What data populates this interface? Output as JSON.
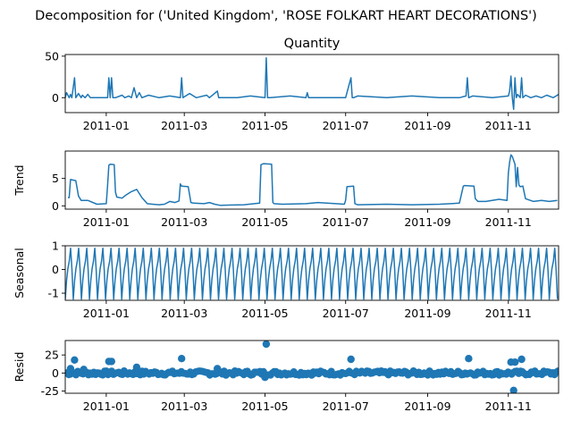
{
  "figure": {
    "suptitle": "Decomposition for ('United Kingdom', 'ROSE FOLKART HEART DECORATIONS')"
  },
  "style": {
    "line_color": "#1f77b4",
    "axis_color": "#000000",
    "background": "#ffffff"
  },
  "chart_data": [
    {
      "type": "line",
      "panel": "observed",
      "title": "Quantity",
      "ylabel": "",
      "ylim": [
        -18,
        52
      ],
      "yticks": [
        0,
        50
      ],
      "x_range": [
        "2010-12-01",
        "2011-12-09"
      ],
      "xticks": [
        "2011-01",
        "2011-03",
        "2011-05",
        "2011-07",
        "2011-09",
        "2011-11"
      ],
      "series": [
        {
          "x": [
            "2010-12-01",
            "2010-12-02",
            "2010-12-04",
            "2010-12-05",
            "2010-12-06",
            "2010-12-08",
            "2010-12-09",
            "2010-12-11",
            "2010-12-13",
            "2010-12-14",
            "2010-12-16",
            "2010-12-18",
            "2010-12-20",
            "2010-12-25",
            "2011-01-02",
            "2011-01-03",
            "2011-01-04",
            "2011-01-05",
            "2011-01-06",
            "2011-01-08",
            "2011-01-13",
            "2011-01-15",
            "2011-01-18",
            "2011-01-20",
            "2011-01-22",
            "2011-01-24",
            "2011-01-26",
            "2011-01-28",
            "2011-02-02",
            "2011-02-10",
            "2011-02-18",
            "2011-02-26",
            "2011-02-27",
            "2011-02-28",
            "2011-03-05",
            "2011-03-10",
            "2011-03-18",
            "2011-03-20",
            "2011-03-26",
            "2011-03-27",
            "2011-03-28",
            "2011-04-10",
            "2011-04-20",
            "2011-05-01",
            "2011-05-02",
            "2011-05-03",
            "2011-05-05",
            "2011-05-20",
            "2011-06-01",
            "2011-06-02",
            "2011-06-03",
            "2011-06-20",
            "2011-07-01",
            "2011-07-05",
            "2011-07-06",
            "2011-07-07",
            "2011-07-10",
            "2011-08-01",
            "2011-08-20",
            "2011-09-10",
            "2011-09-25",
            "2011-09-30",
            "2011-10-01",
            "2011-10-02",
            "2011-10-05",
            "2011-10-20",
            "2011-11-01",
            "2011-11-02",
            "2011-11-03",
            "2011-11-04",
            "2011-11-05",
            "2011-11-06",
            "2011-11-07",
            "2011-11-08",
            "2011-11-10",
            "2011-11-11",
            "2011-11-12",
            "2011-11-14",
            "2011-11-18",
            "2011-11-22",
            "2011-11-26",
            "2011-11-30",
            "2011-12-05",
            "2011-12-09"
          ],
          "y": [
            0,
            6,
            0,
            4,
            0,
            24,
            0,
            5,
            0,
            3,
            0,
            4,
            0,
            0,
            0,
            24,
            0,
            24,
            0,
            0,
            3,
            0,
            2,
            0,
            12,
            0,
            6,
            0,
            3,
            0,
            2,
            0,
            24,
            0,
            5,
            0,
            3,
            0,
            8,
            0,
            0,
            0,
            2,
            0,
            48,
            0,
            0,
            2,
            0,
            6,
            0,
            0,
            0,
            24,
            0,
            0,
            2,
            0,
            2,
            0,
            0,
            2,
            24,
            0,
            2,
            0,
            2,
            8,
            26,
            0,
            -14,
            24,
            0,
            4,
            0,
            24,
            0,
            3,
            0,
            2,
            0,
            3,
            0,
            4
          ]
        }
      ]
    },
    {
      "type": "line",
      "panel": "trend",
      "title": "",
      "ylabel": "Trend",
      "ylim": [
        -0.6,
        10
      ],
      "yticks": [
        0,
        5
      ],
      "x_range": [
        "2010-12-01",
        "2011-12-09"
      ],
      "xticks": [
        "2011-01",
        "2011-03",
        "2011-05",
        "2011-07",
        "2011-09",
        "2011-11"
      ],
      "series": [
        {
          "x": [
            "2010-12-03",
            "2010-12-04",
            "2010-12-05",
            "2010-12-09",
            "2010-12-11",
            "2010-12-13",
            "2010-12-18",
            "2010-12-25",
            "2011-01-01",
            "2011-01-02",
            "2011-01-03",
            "2011-01-04",
            "2011-01-07",
            "2011-01-08",
            "2011-01-09",
            "2011-01-13",
            "2011-01-16",
            "2011-01-20",
            "2011-01-24",
            "2011-01-28",
            "2011-02-01",
            "2011-02-05",
            "2011-02-10",
            "2011-02-14",
            "2011-02-18",
            "2011-02-22",
            "2011-02-25",
            "2011-02-26",
            "2011-02-27",
            "2011-03-04",
            "2011-03-06",
            "2011-03-08",
            "2011-03-16",
            "2011-03-20",
            "2011-03-24",
            "2011-03-28",
            "2011-04-15",
            "2011-04-27",
            "2011-04-28",
            "2011-04-30",
            "2011-05-06",
            "2011-05-07",
            "2011-05-08",
            "2011-05-14",
            "2011-06-01",
            "2011-06-10",
            "2011-06-30",
            "2011-07-01",
            "2011-07-02",
            "2011-07-07",
            "2011-07-08",
            "2011-07-10",
            "2011-08-01",
            "2011-08-20",
            "2011-09-10",
            "2011-09-25",
            "2011-09-28",
            "2011-09-29",
            "2011-10-06",
            "2011-10-07",
            "2011-10-09",
            "2011-10-15",
            "2011-10-25",
            "2011-10-31",
            "2011-11-01",
            "2011-11-02",
            "2011-11-03",
            "2011-11-04",
            "2011-11-06",
            "2011-11-07",
            "2011-11-08",
            "2011-11-09",
            "2011-11-10",
            "2011-11-12",
            "2011-11-14",
            "2011-11-20",
            "2011-11-26",
            "2011-12-02",
            "2011-12-08"
          ],
          "y": [
            1.5,
            1.5,
            4.8,
            4.6,
            1.8,
            1.0,
            1.0,
            0.3,
            0.4,
            3.8,
            7.4,
            7.6,
            7.5,
            2.5,
            1.6,
            1.4,
            2.0,
            2.6,
            3.0,
            1.5,
            0.4,
            0.3,
            0.2,
            0.3,
            0.8,
            0.6,
            0.9,
            4.0,
            3.6,
            3.5,
            0.6,
            0.5,
            0.4,
            0.6,
            0.3,
            0.1,
            0.2,
            0.5,
            7.5,
            7.7,
            7.6,
            0.6,
            0.4,
            0.3,
            0.4,
            0.6,
            0.3,
            1.0,
            3.5,
            3.6,
            0.4,
            0.2,
            0.3,
            0.2,
            0.3,
            0.5,
            3.6,
            3.7,
            3.6,
            1.3,
            0.8,
            0.8,
            1.2,
            1.0,
            6.0,
            8.0,
            9.3,
            9.0,
            7.6,
            3.5,
            7.0,
            3.8,
            3.5,
            3.6,
            1.3,
            0.8,
            1.0,
            0.8,
            1.0
          ]
        }
      ]
    },
    {
      "type": "line",
      "panel": "seasonal",
      "title": "",
      "ylabel": "Seasonal",
      "ylim": [
        -1.3,
        1.0
      ],
      "yticks": [
        -1,
        0,
        1
      ],
      "x_range": [
        "2010-12-01",
        "2011-12-09"
      ],
      "xticks": [
        "2011-01",
        "2011-03",
        "2011-05",
        "2011-07",
        "2011-09",
        "2011-11"
      ],
      "period_days": 6.1,
      "pattern": [
        -1.25,
        -0.45,
        0.05,
        0.35,
        0.9,
        0.0
      ]
    },
    {
      "type": "scatter",
      "panel": "resid",
      "title": "",
      "ylabel": "Resid",
      "ylim": [
        -28,
        45
      ],
      "yticks": [
        -25,
        0,
        25
      ],
      "x_range": [
        "2010-12-01",
        "2011-12-09"
      ],
      "xticks": [
        "2011-01",
        "2011-03",
        "2011-05",
        "2011-07",
        "2011-09",
        "2011-11"
      ],
      "points": [
        {
          "x": "2010-12-05",
          "y": 6
        },
        {
          "x": "2010-12-08",
          "y": 18
        },
        {
          "x": "2010-12-15",
          "y": 5
        },
        {
          "x": "2011-01-03",
          "y": 16
        },
        {
          "x": "2011-01-05",
          "y": 16
        },
        {
          "x": "2011-01-24",
          "y": 8
        },
        {
          "x": "2011-02-27",
          "y": 20
        },
        {
          "x": "2011-03-26",
          "y": 6
        },
        {
          "x": "2011-05-02",
          "y": 40
        },
        {
          "x": "2011-05-01",
          "y": -6
        },
        {
          "x": "2011-07-05",
          "y": 19
        },
        {
          "x": "2011-10-02",
          "y": 20
        },
        {
          "x": "2011-11-03",
          "y": 15
        },
        {
          "x": "2011-11-05",
          "y": -24
        },
        {
          "x": "2011-11-06",
          "y": 15
        },
        {
          "x": "2011-11-11",
          "y": 19
        }
      ]
    }
  ]
}
